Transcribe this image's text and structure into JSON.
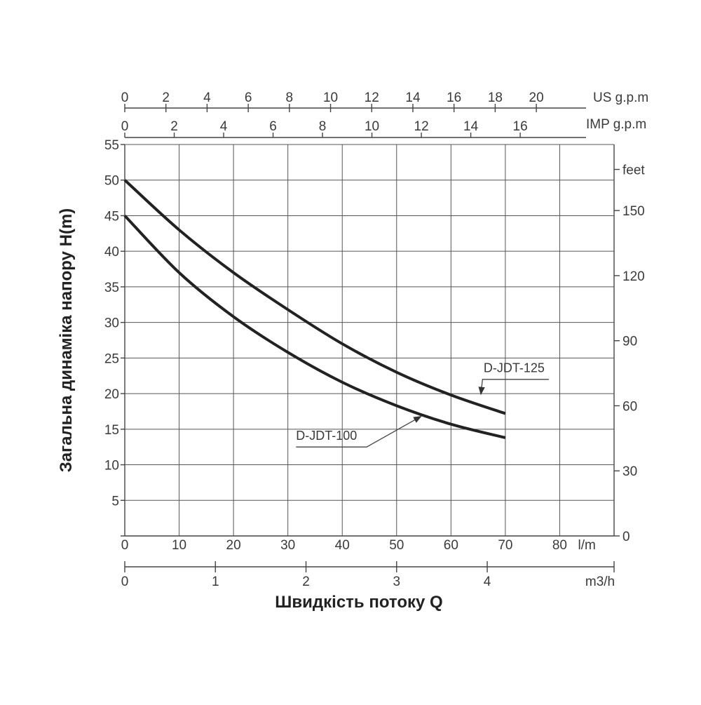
{
  "chart_data": {
    "type": "line",
    "ylabel": "Загальна динаміка напору H(m)",
    "xlabel": "Швидкість потоку Q",
    "x_units": "l/m",
    "xlim": [
      0,
      90
    ],
    "ylim": [
      0,
      55
    ],
    "grid": true,
    "y_ticks": [
      0,
      5,
      10,
      15,
      20,
      25,
      30,
      35,
      40,
      45,
      50,
      55
    ],
    "x_ticks": [
      0,
      10,
      20,
      30,
      40,
      50,
      60,
      70,
      80
    ],
    "feet_axis": {
      "label": "feet",
      "ticks": [
        0,
        30,
        60,
        90,
        120,
        150
      ]
    },
    "us_gpm_axis": {
      "label": "US g.p.m",
      "ticks": [
        0,
        2,
        4,
        6,
        8,
        10,
        12,
        14,
        16,
        18,
        20
      ]
    },
    "imp_gpm_axis": {
      "label": "IMP g.p.m",
      "ticks": [
        0,
        2,
        4,
        6,
        8,
        10,
        12,
        14,
        16
      ]
    },
    "m3h_axis": {
      "label": "m3/h",
      "ticks": [
        0,
        1,
        2,
        3,
        4
      ]
    },
    "series": [
      {
        "name": "D-JDT-125",
        "x": [
          0,
          10,
          20,
          30,
          40,
          50,
          60,
          70
        ],
        "y": [
          50,
          43,
          37,
          31.8,
          27,
          23,
          19.8,
          17.2
        ]
      },
      {
        "name": "D-JDT-100",
        "x": [
          0,
          10,
          20,
          30,
          40,
          50,
          60,
          70
        ],
        "y": [
          45,
          37,
          30.8,
          25.8,
          21.6,
          18.3,
          15.7,
          13.8
        ]
      }
    ],
    "annotations": [
      {
        "text": "D-JDT-125",
        "series": "D-JDT-125",
        "x": 65.5,
        "y": 19.7
      },
      {
        "text": "D-JDT-100",
        "series": "D-JDT-100",
        "x": 54.5,
        "y": 17
      }
    ]
  }
}
